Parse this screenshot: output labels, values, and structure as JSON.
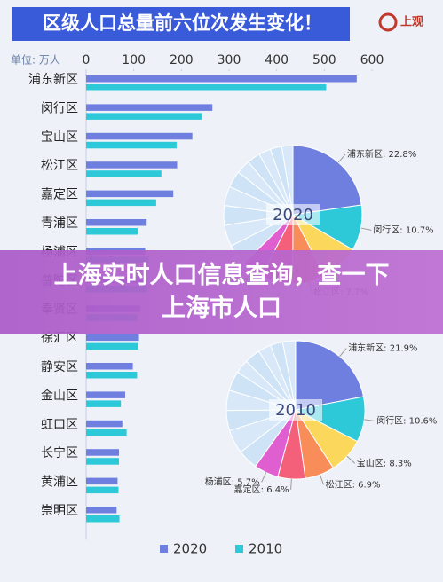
{
  "header": {
    "title": "区级人口总量前六位次发生变化！",
    "logo": "上观"
  },
  "banner": {
    "text": "上海实时人口信息查询，查一下上海市人口"
  },
  "chart_data": [
    {
      "type": "bar",
      "orientation": "horizontal",
      "unit_label": "单位: 万人",
      "categories": [
        "浦东新区",
        "闵行区",
        "宝山区",
        "松江区",
        "嘉定区",
        "青浦区",
        "杨浦区",
        "普陀区",
        "奉贤区",
        "徐汇区",
        "静安区",
        "金山区",
        "虹口区",
        "长宁区",
        "黄浦区",
        "崇明区"
      ],
      "series": [
        {
          "name": "2020",
          "color": "#6f7fe0",
          "values": [
            568,
            265,
            223,
            191,
            183,
            127,
            124,
            124,
            114,
            111,
            98,
            82,
            76,
            69,
            66,
            64
          ]
        },
        {
          "name": "2010",
          "color": "#2ec9d9",
          "values": [
            504,
            243,
            190,
            158,
            147,
            108,
            131,
            129,
            108,
            109,
            107,
            73,
            85,
            69,
            68,
            70
          ]
        }
      ],
      "xlim": [
        0,
        600
      ],
      "xticks": [
        0,
        100,
        200,
        300,
        400,
        500,
        600
      ],
      "legend": "bottom"
    },
    {
      "type": "pie",
      "title": "2020",
      "values": [
        22.8,
        10.7,
        9.0,
        7.7,
        7.4,
        5.1,
        5.0,
        5.0,
        4.6,
        4.5,
        3.9,
        3.3,
        3.1,
        2.8,
        2.7,
        2.6
      ],
      "labels": [
        "浦东新区: 22.8%",
        "闵行区: 10.7%",
        null,
        "松江区: 7.7%",
        null,
        null,
        null,
        null,
        null,
        null,
        null,
        null,
        null,
        null,
        null,
        null
      ],
      "colors": [
        "#6f7fe0",
        "#2ec9d9",
        "#fbd75b",
        "#f98d5a",
        "#f45f7a",
        "#e05fd0",
        "#cfe3f7",
        "#d8e8f8",
        "#cfe3f7",
        "#d8e8f8",
        "#cfe3f7",
        "#d8e8f8",
        "#cfe3f7",
        "#d8e8f8",
        "#cfe3f7",
        "#d8e8f8"
      ]
    },
    {
      "type": "pie",
      "title": "2010",
      "values": [
        21.9,
        10.6,
        8.3,
        6.9,
        6.4,
        5.7,
        4.7,
        5.6,
        4.7,
        4.7,
        4.6,
        3.2,
        3.7,
        3.0,
        2.9,
        3.0
      ],
      "labels": [
        "浦东新区: 21.9%",
        "闵行区: 10.6%",
        "宝山区: 8.3%",
        "松江区: 6.9%",
        "嘉定区: 6.4%",
        "杨浦区: 5.7%",
        null,
        null,
        null,
        null,
        null,
        null,
        null,
        null,
        null,
        null
      ],
      "colors": [
        "#6f7fe0",
        "#2ec9d9",
        "#fbd75b",
        "#f98d5a",
        "#f45f7a",
        "#e05fd0",
        "#cfe3f7",
        "#d8e8f8",
        "#cfe3f7",
        "#d8e8f8",
        "#cfe3f7",
        "#d8e8f8",
        "#cfe3f7",
        "#d8e8f8",
        "#cfe3f7",
        "#d8e8f8"
      ]
    }
  ]
}
